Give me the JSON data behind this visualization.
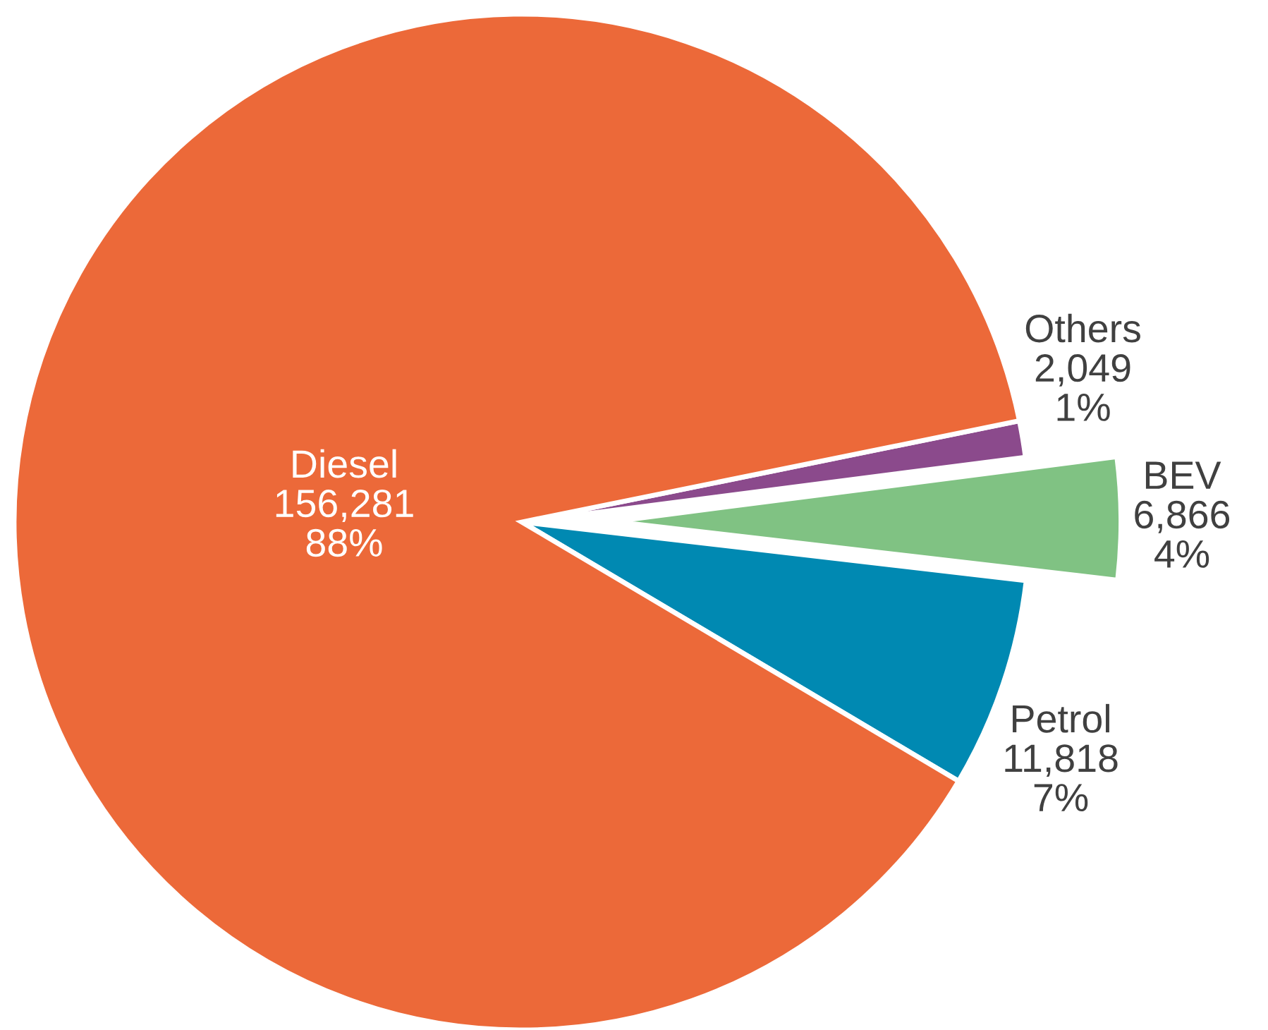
{
  "chart_data": {
    "type": "pie",
    "categories": [
      "Others",
      "BEV",
      "Petrol",
      "Diesel"
    ],
    "values": [
      2049,
      6866,
      11818,
      156281
    ],
    "value_labels": [
      "2,049\n1%",
      "6,866\n4%",
      "11,818\n7%",
      "156,281\n88%"
    ],
    "colors": [
      "#8b4a8c",
      "#80c283",
      "#0089b2",
      "#ec6939"
    ],
    "legend": false
  }
}
